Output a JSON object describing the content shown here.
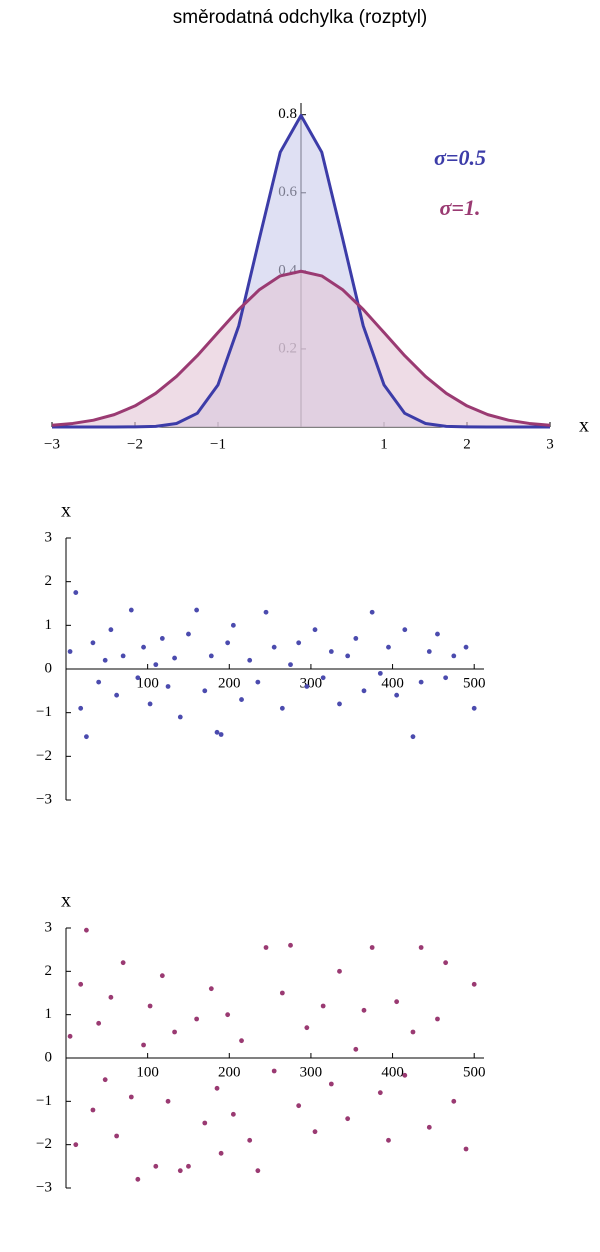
{
  "chart_data": [
    {
      "type": "line",
      "title": "směrodatná odchylka (rozptyl)",
      "x_label": "x",
      "x": [
        -3,
        -2.75,
        -2.5,
        -2.25,
        -2,
        -1.75,
        -1.5,
        -1.25,
        -1,
        -0.75,
        -0.5,
        -0.25,
        0,
        0.25,
        0.5,
        0.75,
        1,
        1.25,
        1.5,
        1.75,
        2,
        2.25,
        2.5,
        2.75,
        3
      ],
      "series": [
        {
          "name": "σ=0.5",
          "color": "#3c3ca8",
          "fill": "#c9cbeb",
          "values": [
            0,
            0,
            0,
            3e-05,
            0.00027,
            0.0017,
            0.0089,
            0.035,
            0.108,
            0.259,
            0.484,
            0.704,
            0.798,
            0.704,
            0.484,
            0.259,
            0.108,
            0.035,
            0.0089,
            0.0017,
            0.00027,
            3e-05,
            0,
            0,
            0
          ]
        },
        {
          "name": "σ=1.",
          "color": "#9a3a72",
          "fill": "#e3c4d6",
          "values": [
            0.0044,
            0.0091,
            0.0175,
            0.0317,
            0.054,
            0.0863,
            0.1295,
            0.1826,
            0.242,
            0.301,
            0.352,
            0.387,
            0.399,
            0.387,
            0.352,
            0.301,
            0.242,
            0.1826,
            0.1295,
            0.0863,
            0.054,
            0.0317,
            0.0175,
            0.0091,
            0.0044
          ]
        }
      ],
      "xlim": [
        -3,
        3
      ],
      "ylim": [
        0,
        0.83
      ],
      "xticks": [
        {
          "value": -3,
          "label": "−3"
        },
        {
          "value": -2,
          "label": "−2"
        },
        {
          "value": -1,
          "label": "−1"
        },
        1,
        2,
        3
      ],
      "yticks": [
        0.2,
        0.4,
        0.6,
        0.8
      ]
    },
    {
      "type": "scatter",
      "y_label": "x",
      "color": "#4b4bae",
      "x": [
        5,
        12,
        18,
        25,
        33,
        40,
        48,
        55,
        62,
        70,
        80,
        88,
        95,
        103,
        110,
        118,
        125,
        133,
        140,
        150,
        160,
        170,
        178,
        185,
        190,
        198,
        205,
        215,
        225,
        235,
        245,
        255,
        265,
        275,
        285,
        295,
        305,
        315,
        325,
        335,
        345,
        355,
        365,
        375,
        385,
        395,
        405,
        415,
        425,
        435,
        445,
        455,
        465,
        475,
        490,
        500
      ],
      "values": [
        0.4,
        1.75,
        -0.9,
        -1.55,
        0.6,
        -0.3,
        0.2,
        0.9,
        -0.6,
        0.3,
        1.35,
        -0.2,
        0.5,
        -0.8,
        0.1,
        0.7,
        -0.4,
        0.25,
        -1.1,
        0.8,
        1.35,
        -0.5,
        0.3,
        -1.45,
        -1.5,
        0.6,
        1.0,
        -0.7,
        0.2,
        -0.3,
        1.3,
        0.5,
        -0.9,
        0.1,
        0.6,
        -0.4,
        0.9,
        -0.2,
        0.4,
        -0.8,
        0.3,
        0.7,
        -0.5,
        1.3,
        -0.1,
        0.5,
        -0.6,
        0.9,
        -1.55,
        -0.3,
        0.4,
        0.8,
        -0.2,
        0.3,
        0.5,
        -0.9
      ],
      "xlim": [
        0,
        512
      ],
      "ylim": [
        -3,
        3
      ],
      "xticks": [
        100,
        200,
        300,
        400,
        500
      ],
      "yticks": [
        {
          "value": -3,
          "label": "−3"
        },
        {
          "value": -2,
          "label": "−2"
        },
        {
          "value": -1,
          "label": "−1"
        },
        0,
        1,
        2,
        3
      ]
    },
    {
      "type": "scatter",
      "y_label": "x",
      "color": "#9a3a72",
      "x": [
        5,
        12,
        18,
        25,
        33,
        40,
        48,
        55,
        62,
        70,
        80,
        88,
        95,
        103,
        110,
        118,
        125,
        133,
        140,
        150,
        160,
        170,
        178,
        185,
        190,
        198,
        205,
        215,
        225,
        235,
        245,
        255,
        265,
        275,
        285,
        295,
        305,
        315,
        325,
        335,
        345,
        355,
        365,
        375,
        385,
        395,
        405,
        415,
        425,
        435,
        445,
        455,
        465,
        475,
        490,
        500
      ],
      "values": [
        0.5,
        -2.0,
        1.7,
        2.95,
        -1.2,
        0.8,
        -0.5,
        1.4,
        -1.8,
        2.2,
        -0.9,
        -2.8,
        0.3,
        1.2,
        -2.5,
        1.9,
        -1.0,
        0.6,
        -2.6,
        -2.5,
        0.9,
        -1.5,
        1.6,
        -0.7,
        -2.2,
        1.0,
        -1.3,
        0.4,
        -1.9,
        -2.6,
        2.55,
        -0.3,
        1.5,
        2.6,
        -1.1,
        0.7,
        -1.7,
        1.2,
        -0.6,
        2.0,
        -1.4,
        0.2,
        1.1,
        2.55,
        -0.8,
        -1.9,
        1.3,
        -0.4,
        0.6,
        2.55,
        -1.6,
        0.9,
        2.2,
        -1.0,
        -2.1,
        1.7
      ],
      "xlim": [
        0,
        512
      ],
      "ylim": [
        -3,
        3
      ],
      "xticks": [
        100,
        200,
        300,
        400,
        500
      ],
      "yticks": [
        {
          "value": -3,
          "label": "−3"
        },
        {
          "value": -2,
          "label": "−2"
        },
        {
          "value": -1,
          "label": "−1"
        },
        0,
        1,
        2,
        3
      ]
    }
  ]
}
